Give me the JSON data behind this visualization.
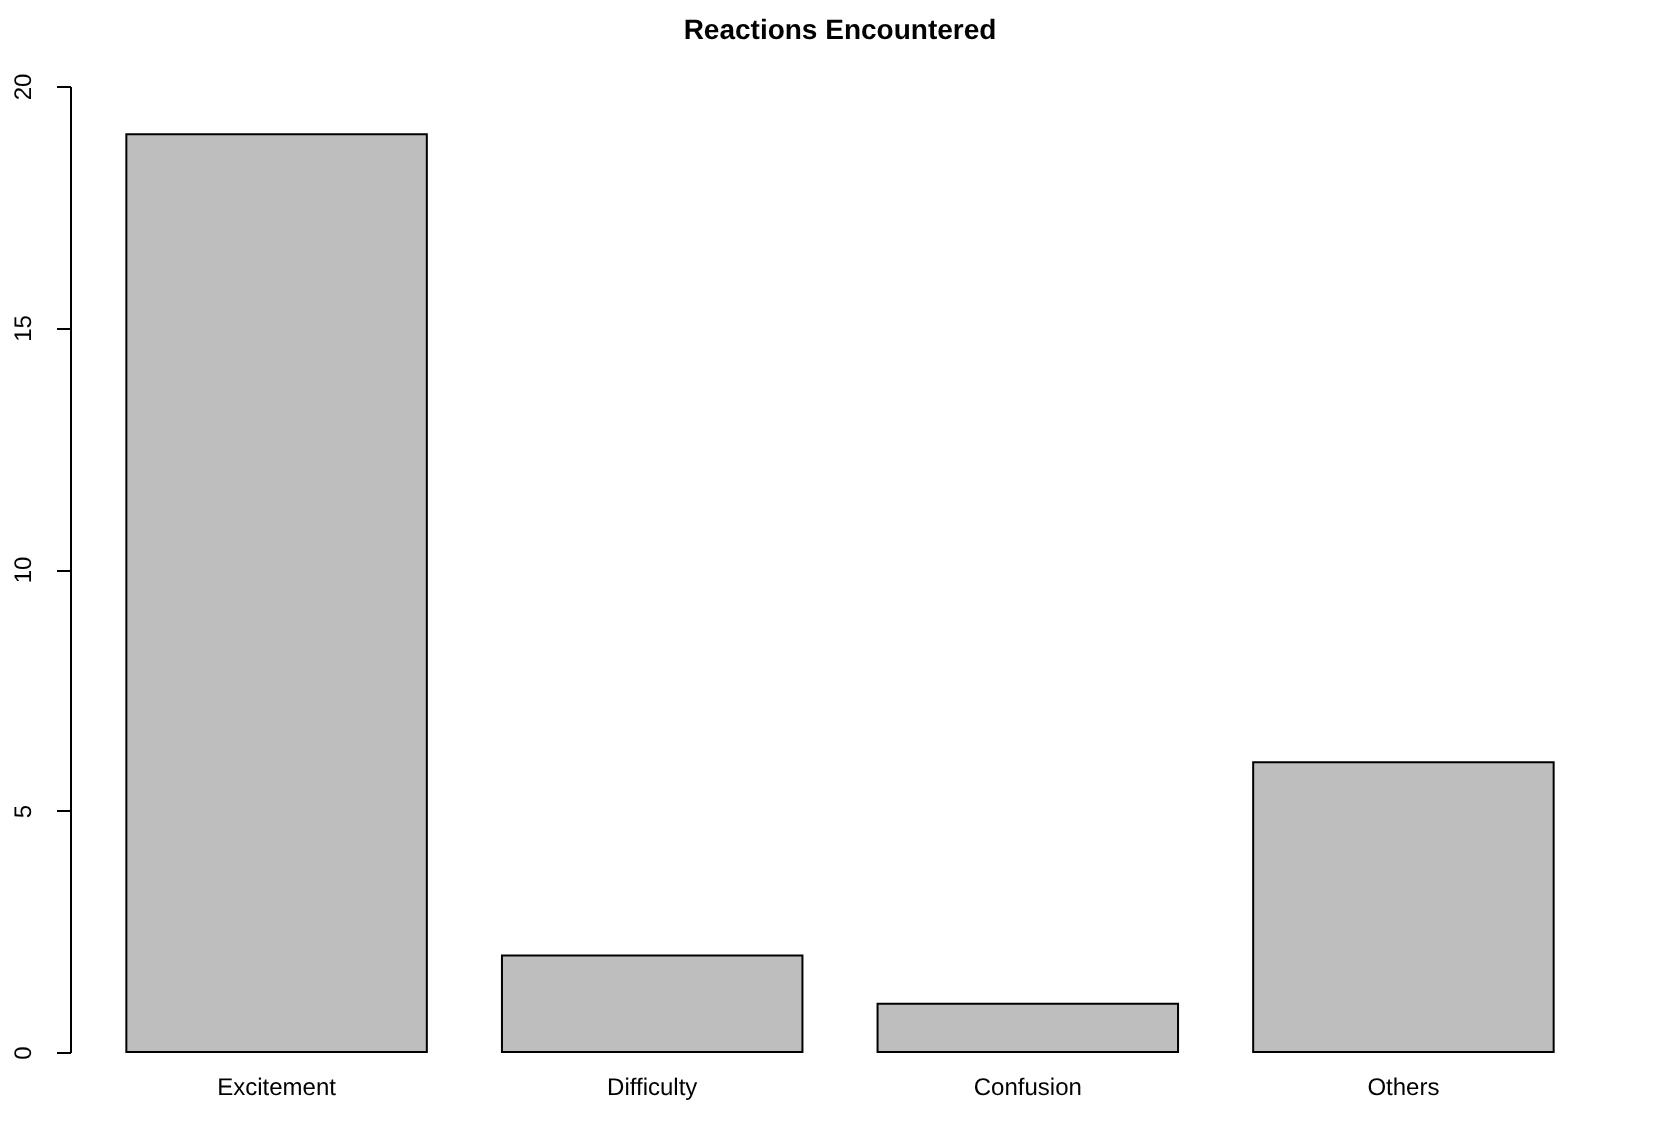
{
  "chart_data": {
    "type": "bar",
    "title": "Reactions Encountered",
    "categories": [
      "Excitement",
      "Difficulty",
      "Confusion",
      "Others"
    ],
    "values": [
      19,
      2,
      1,
      6
    ],
    "color": "#bebebe",
    "ylim": [
      0,
      20
    ],
    "yticks": [
      0,
      5,
      10,
      15,
      20
    ],
    "grid": false
  }
}
